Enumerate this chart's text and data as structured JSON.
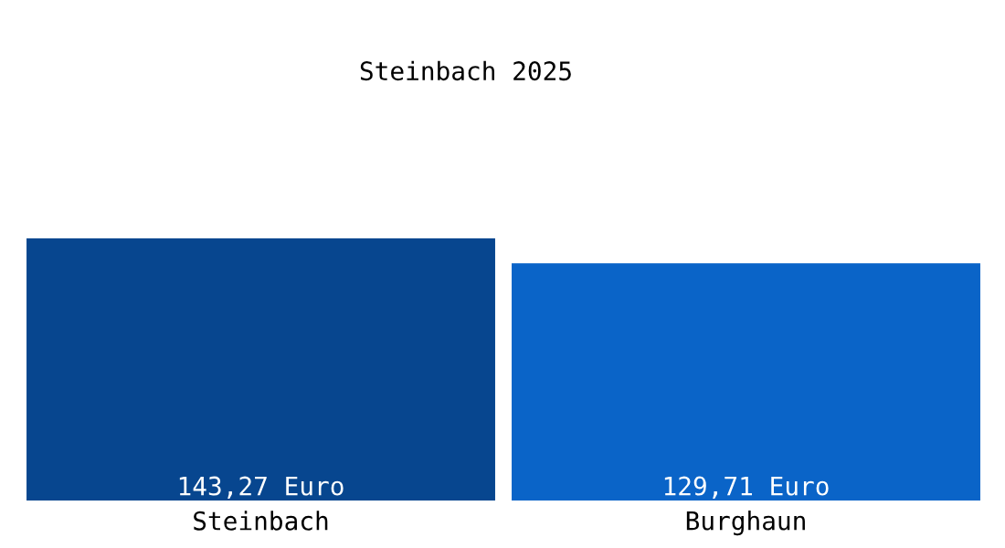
{
  "chart_data": {
    "type": "bar",
    "title": "Steinbach 2025",
    "categories": [
      "Steinbach",
      "Burghaun"
    ],
    "values": [
      143.27,
      129.71
    ],
    "colors": [
      "#07468f",
      "#0a64c8"
    ],
    "value_labels": [
      "143,27 Euro",
      "129,71 Euro"
    ],
    "grid": false,
    "legend": false
  }
}
